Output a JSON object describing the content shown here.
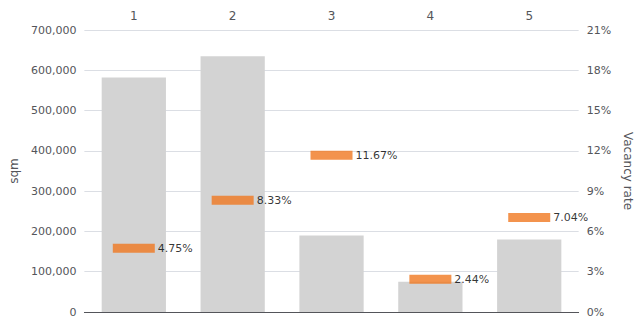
{
  "chart_data": {
    "type": "bar",
    "categories": [
      "1",
      "2",
      "3",
      "4",
      "5"
    ],
    "series": [
      {
        "type": "bar",
        "color": "#d3d3d3",
        "values": [
          582000,
          635000,
          190000,
          75000,
          180000
        ]
      },
      {
        "type": "scatter",
        "marker": "rect",
        "axis": "y2",
        "color": "#f07820",
        "data_labels": true,
        "values": [
          4.75,
          8.33,
          11.67,
          2.44,
          7.04
        ],
        "value_labels": [
          "4.75%",
          "8.33%",
          "11.67%",
          "2.44%",
          "7.04%"
        ]
      }
    ],
    "ylabel": "sqm",
    "y2label": "Vacancy rate",
    "ylim": [
      0,
      700000
    ],
    "yticks": [
      0,
      {
        "value": 100000,
        "label": "100,000"
      },
      {
        "value": 200000,
        "label": "200,000"
      },
      {
        "value": 300000,
        "label": "300,000"
      },
      {
        "value": 400000,
        "label": "400,000"
      },
      {
        "value": 500000,
        "label": "500,000"
      },
      {
        "value": 600000,
        "label": "600,000"
      },
      {
        "value": 700000,
        "label": "700,000"
      }
    ],
    "y2lim": [
      0,
      21
    ],
    "y2ticks": [
      {
        "value": 0,
        "label": "0%"
      },
      {
        "value": 3,
        "label": "3%"
      },
      {
        "value": 6,
        "label": "6%"
      },
      {
        "value": 9,
        "label": "9%"
      },
      {
        "value": 12,
        "label": "12%"
      },
      {
        "value": 15,
        "label": "15%"
      },
      {
        "value": 18,
        "label": "18%"
      },
      {
        "value": 21,
        "label": "21%"
      }
    ],
    "grid": true
  }
}
